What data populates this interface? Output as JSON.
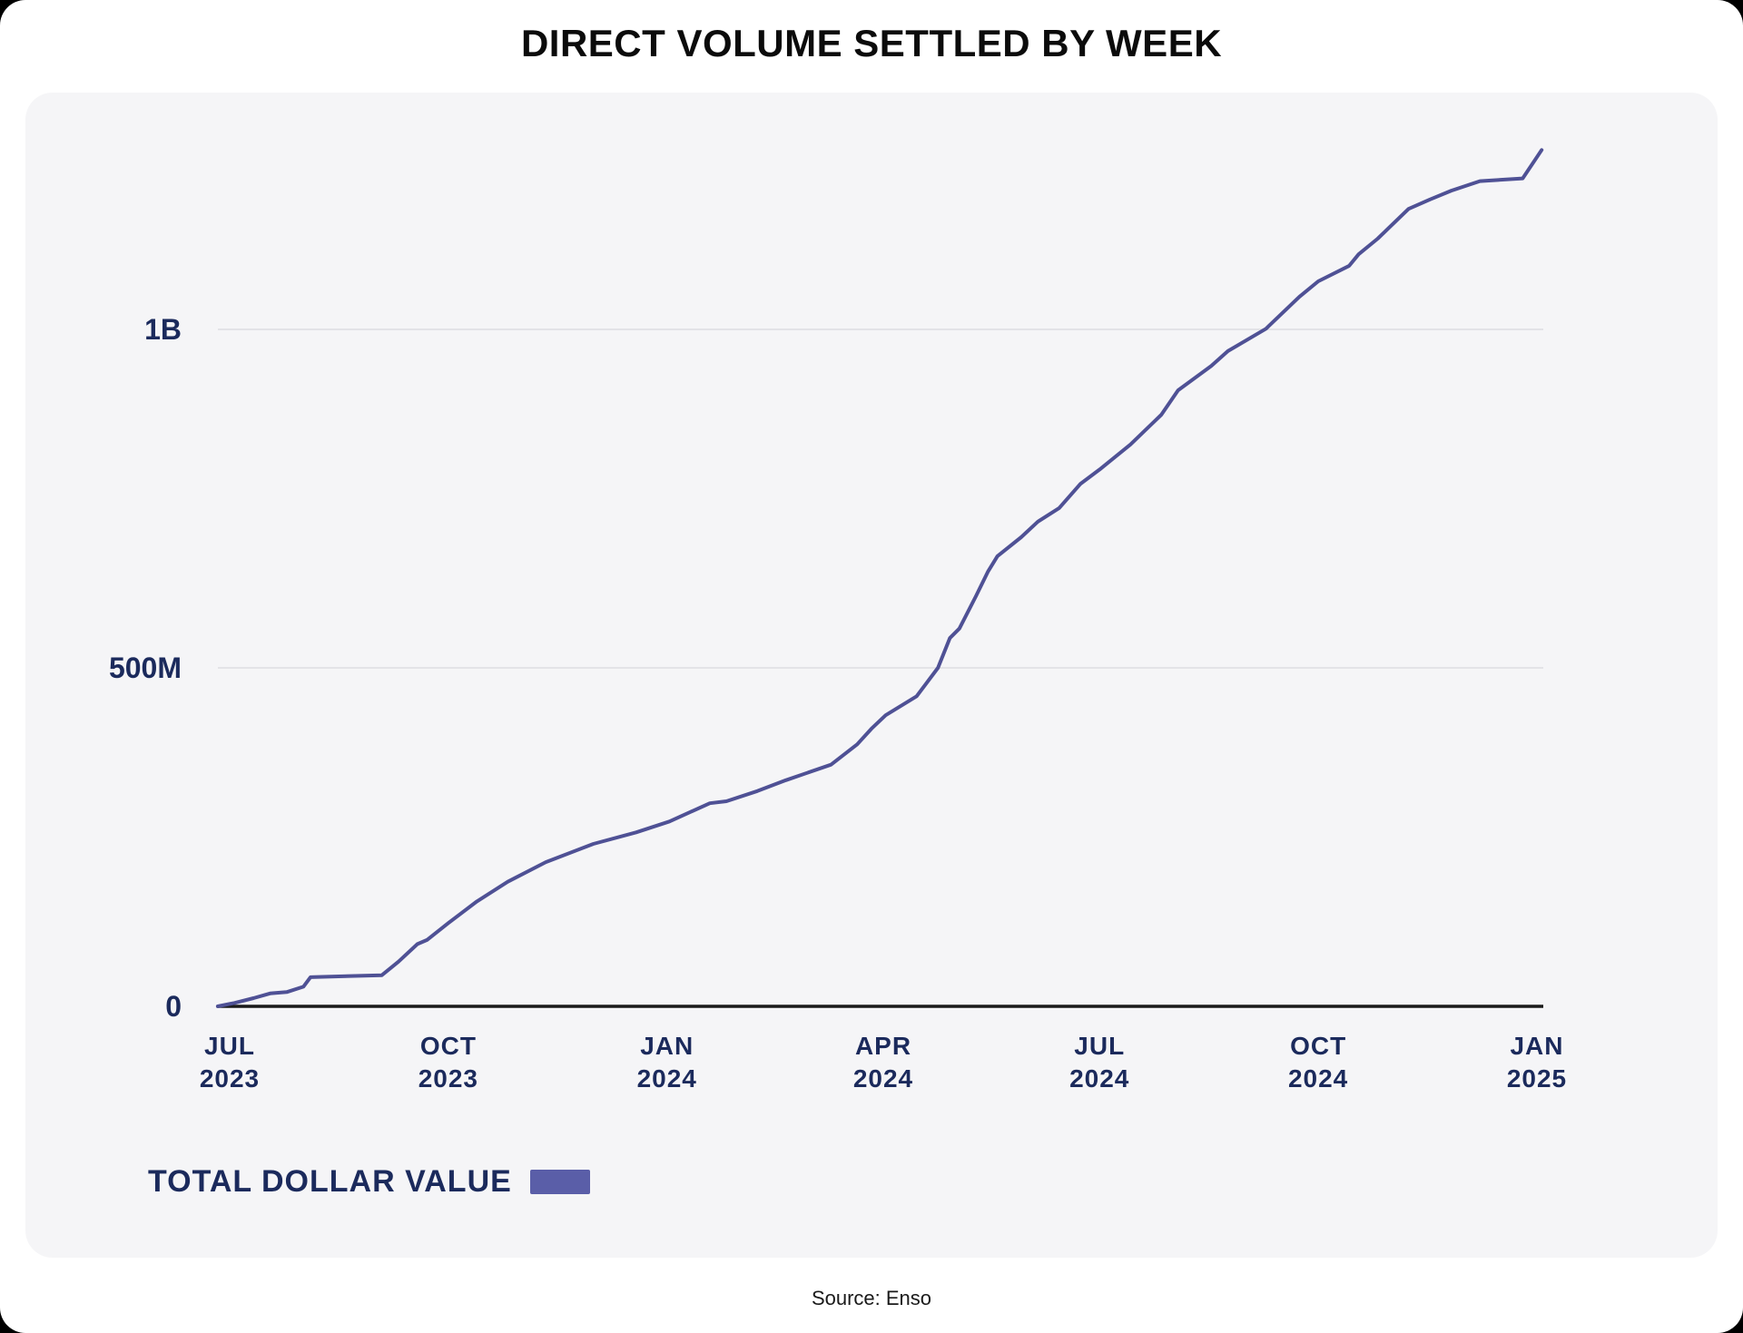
{
  "page": {
    "title": "DIRECT VOLUME SETTLED BY WEEK",
    "source": "Source: Enso"
  },
  "legend": {
    "label": "TOTAL DOLLAR VALUE"
  },
  "colors": {
    "line": "#4f5195",
    "legend_swatch": "#5a5ea8",
    "axis": "#1a1a1a",
    "grid": "#e3e3e7",
    "tick_label": "#1b2a5c",
    "panel_bg": "#f5f5f7"
  },
  "chart_data": {
    "type": "line",
    "title": "DIRECT VOLUME SETTLED BY WEEK",
    "xlabel": "",
    "ylabel": "",
    "unit": "USD (millions)",
    "ylim_millions": [
      0,
      1350
    ],
    "grid": "horizontal",
    "legend_position": "bottom-left",
    "yticks": [
      {
        "label": "0",
        "value_m": 0
      },
      {
        "label": "500M",
        "value_m": 500
      },
      {
        "label": "1B",
        "value_m": 1000
      }
    ],
    "xticks": [
      {
        "month": "JUL",
        "year": "2023",
        "date": "2023-07-01"
      },
      {
        "month": "OCT",
        "year": "2023",
        "date": "2023-10-01"
      },
      {
        "month": "JAN",
        "year": "2024",
        "date": "2024-01-01"
      },
      {
        "month": "APR",
        "year": "2024",
        "date": "2024-04-01"
      },
      {
        "month": "JUL",
        "year": "2024",
        "date": "2024-07-01"
      },
      {
        "month": "OCT",
        "year": "2024",
        "date": "2024-10-01"
      },
      {
        "month": "JAN",
        "year": "2025",
        "date": "2025-01-01"
      }
    ],
    "series": [
      {
        "name": "TOTAL DOLLAR VALUE",
        "points": [
          {
            "date": "2023-06-26",
            "value_m": 0
          },
          {
            "date": "2023-07-03",
            "value_m": 5
          },
          {
            "date": "2023-07-11",
            "value_m": 12
          },
          {
            "date": "2023-07-18",
            "value_m": 19
          },
          {
            "date": "2023-07-25",
            "value_m": 21
          },
          {
            "date": "2023-08-01",
            "value_m": 29
          },
          {
            "date": "2023-08-04",
            "value_m": 43
          },
          {
            "date": "2023-09-03",
            "value_m": 46
          },
          {
            "date": "2023-09-10",
            "value_m": 66
          },
          {
            "date": "2023-09-18",
            "value_m": 92
          },
          {
            "date": "2023-09-22",
            "value_m": 98
          },
          {
            "date": "2023-10-01",
            "value_m": 123
          },
          {
            "date": "2023-10-13",
            "value_m": 155
          },
          {
            "date": "2023-10-26",
            "value_m": 184
          },
          {
            "date": "2023-11-11",
            "value_m": 213
          },
          {
            "date": "2023-12-01",
            "value_m": 240
          },
          {
            "date": "2023-12-19",
            "value_m": 257
          },
          {
            "date": "2024-01-02",
            "value_m": 273
          },
          {
            "date": "2024-01-19",
            "value_m": 300
          },
          {
            "date": "2024-01-26",
            "value_m": 303
          },
          {
            "date": "2024-02-08",
            "value_m": 318
          },
          {
            "date": "2024-02-20",
            "value_m": 334
          },
          {
            "date": "2024-03-10",
            "value_m": 357
          },
          {
            "date": "2024-03-21",
            "value_m": 387
          },
          {
            "date": "2024-03-27",
            "value_m": 410
          },
          {
            "date": "2024-04-02",
            "value_m": 430
          },
          {
            "date": "2024-04-15",
            "value_m": 458
          },
          {
            "date": "2024-04-24",
            "value_m": 500
          },
          {
            "date": "2024-04-29",
            "value_m": 544
          },
          {
            "date": "2024-05-03",
            "value_m": 558
          },
          {
            "date": "2024-05-10",
            "value_m": 606
          },
          {
            "date": "2024-05-15",
            "value_m": 642
          },
          {
            "date": "2024-05-19",
            "value_m": 665
          },
          {
            "date": "2024-05-29",
            "value_m": 693
          },
          {
            "date": "2024-06-05",
            "value_m": 716
          },
          {
            "date": "2024-06-14",
            "value_m": 736
          },
          {
            "date": "2024-06-23",
            "value_m": 772
          },
          {
            "date": "2024-07-01",
            "value_m": 793
          },
          {
            "date": "2024-07-14",
            "value_m": 830
          },
          {
            "date": "2024-07-27",
            "value_m": 874
          },
          {
            "date": "2024-08-03",
            "value_m": 910
          },
          {
            "date": "2024-08-17",
            "value_m": 946
          },
          {
            "date": "2024-08-24",
            "value_m": 968
          },
          {
            "date": "2024-09-09",
            "value_m": 1001
          },
          {
            "date": "2024-09-23",
            "value_m": 1048
          },
          {
            "date": "2024-10-01",
            "value_m": 1071
          },
          {
            "date": "2024-10-14",
            "value_m": 1094
          },
          {
            "date": "2024-10-18",
            "value_m": 1111
          },
          {
            "date": "2024-10-26",
            "value_m": 1134
          },
          {
            "date": "2024-11-08",
            "value_m": 1178
          },
          {
            "date": "2024-11-17",
            "value_m": 1192
          },
          {
            "date": "2024-11-26",
            "value_m": 1205
          },
          {
            "date": "2024-12-08",
            "value_m": 1219
          },
          {
            "date": "2024-12-26",
            "value_m": 1223
          },
          {
            "date": "2025-01-03",
            "value_m": 1265
          }
        ]
      }
    ]
  }
}
